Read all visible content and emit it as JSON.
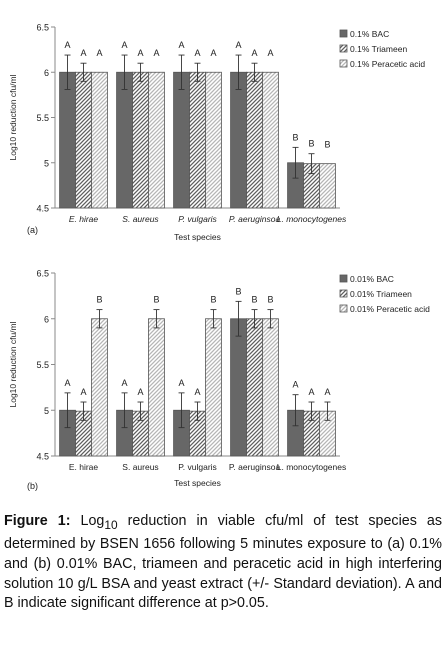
{
  "chart_data": [
    {
      "type": "bar",
      "panel_label": "(a)",
      "categories": [
        "E. hirae",
        "S. aureus",
        "P. vulgaris",
        "P. aeruginsoa",
        "L. monocytogenes"
      ],
      "series": [
        {
          "name": "0.1% BAC",
          "values": [
            6,
            6,
            6,
            6,
            5
          ],
          "errors": [
            0.19,
            0.19,
            0.19,
            0.19,
            0.17
          ],
          "letters": [
            "A",
            "A",
            "A",
            "A",
            "B"
          ]
        },
        {
          "name": "0.1% Triameen",
          "values": [
            6,
            6,
            6,
            6,
            4.99
          ],
          "errors": [
            0.1,
            0.1,
            0.1,
            0.1,
            0.11
          ],
          "letters": [
            "A",
            "A",
            "A",
            "A",
            "B"
          ]
        },
        {
          "name": "0.1% Peracetic acid",
          "values": [
            6,
            6,
            6,
            6,
            4.99
          ],
          "errors": [
            0,
            0,
            0,
            0,
            0
          ],
          "letters": [
            "A",
            "A",
            "A",
            "A",
            "B"
          ]
        }
      ],
      "ylabel": "Log10 reduction cfu/ml",
      "xlabel": "Test species",
      "ylim": [
        4.5,
        6.5
      ],
      "yticks": [
        "4.5",
        "5",
        "5.5",
        "6",
        "6.5"
      ],
      "legend": "top-right",
      "grid": false,
      "italic_categories": true
    },
    {
      "type": "bar",
      "panel_label": "(b)",
      "categories": [
        "E. hirae",
        "S. aureus",
        "P. vulgaris",
        "P. aeruginsoa",
        "L. monocytogenes"
      ],
      "series": [
        {
          "name": "0.01% BAC",
          "values": [
            5,
            5,
            5,
            6,
            5
          ],
          "errors": [
            0.19,
            0.19,
            0.19,
            0.19,
            0.17
          ],
          "letters": [
            "A",
            "A",
            "A",
            "B",
            "A"
          ]
        },
        {
          "name": "0.01% Triameen",
          "values": [
            4.99,
            4.99,
            4.99,
            6,
            4.99
          ],
          "errors": [
            0.1,
            0.1,
            0.1,
            0.1,
            0.1
          ],
          "letters": [
            "A",
            "A",
            "A",
            "B",
            "A"
          ]
        },
        {
          "name": "0.01% Peracetic acid",
          "values": [
            6,
            6,
            6,
            6,
            4.99
          ],
          "errors": [
            0.1,
            0.1,
            0.1,
            0.1,
            0.1
          ],
          "letters": [
            "B",
            "B",
            "B",
            "B",
            "A"
          ]
        }
      ],
      "ylabel": "Log10 reduction cfu/ml",
      "xlabel": "Test species",
      "ylim": [
        4.5,
        6.5
      ],
      "yticks": [
        "4.5",
        "5",
        "5.5",
        "6",
        "6.5"
      ],
      "legend": "top-right",
      "grid": false,
      "italic_categories": false
    }
  ],
  "styles": {
    "bac_fill": "#676767",
    "triameen_hatch": "#5e5e5e",
    "peracetic_hatch": "#b5b5b5",
    "axis_color": "#8a8a8a"
  },
  "caption": {
    "label": "Figure 1:",
    "pre": " Log",
    "sub": "10",
    "text": " reduction in viable cfu/ml of test species as determined by BSEN 1656 following 5 minutes exposure to (a) 0.1% and (b) 0.01% BAC, triameen and peracetic acid in high interfering solution 10 g/L BSA and yeast extract (+/- Standard deviation). A and B indicate significant difference at p>0.05."
  }
}
